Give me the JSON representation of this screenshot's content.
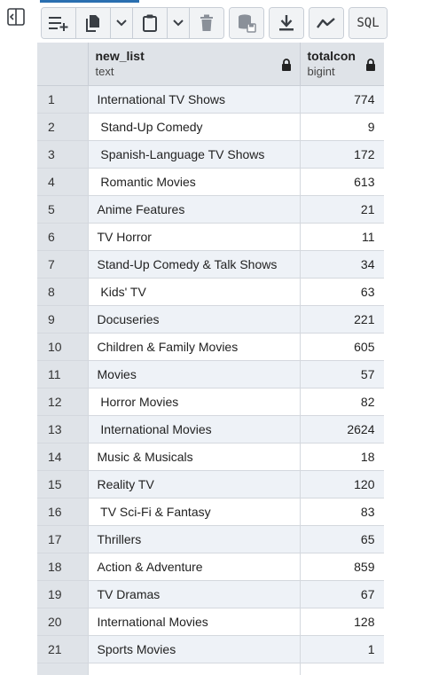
{
  "toolbar": {
    "sql_label": "SQL",
    "buttons": [
      "add-row",
      "copy",
      "copy-options",
      "paste",
      "paste-options",
      "delete",
      "save-data",
      "download",
      "graph",
      "sql"
    ]
  },
  "columns": [
    {
      "name": "new_list",
      "type": "text"
    },
    {
      "name": "totalcon",
      "type": "bigint"
    }
  ],
  "rows": [
    {
      "n": "1",
      "name": "International TV Shows",
      "total": "774"
    },
    {
      "n": "2",
      "name": " Stand-Up Comedy",
      "total": "9"
    },
    {
      "n": "3",
      "name": " Spanish-Language TV Shows",
      "total": "172"
    },
    {
      "n": "4",
      "name": " Romantic Movies",
      "total": "613"
    },
    {
      "n": "5",
      "name": "Anime Features",
      "total": "21"
    },
    {
      "n": "6",
      "name": "TV Horror",
      "total": "11"
    },
    {
      "n": "7",
      "name": "Stand-Up Comedy & Talk Shows",
      "total": "34"
    },
    {
      "n": "8",
      "name": " Kids' TV",
      "total": "63"
    },
    {
      "n": "9",
      "name": "Docuseries",
      "total": "221"
    },
    {
      "n": "10",
      "name": "Children & Family Movies",
      "total": "605"
    },
    {
      "n": "11",
      "name": "Movies",
      "total": "57"
    },
    {
      "n": "12",
      "name": " Horror Movies",
      "total": "82"
    },
    {
      "n": "13",
      "name": " International Movies",
      "total": "2624"
    },
    {
      "n": "14",
      "name": "Music & Musicals",
      "total": "18"
    },
    {
      "n": "15",
      "name": "Reality TV",
      "total": "120"
    },
    {
      "n": "16",
      "name": " TV Sci-Fi & Fantasy",
      "total": "83"
    },
    {
      "n": "17",
      "name": "Thrillers",
      "total": "65"
    },
    {
      "n": "18",
      "name": "Action & Adventure",
      "total": "859"
    },
    {
      "n": "19",
      "name": "TV Dramas",
      "total": "67"
    },
    {
      "n": "20",
      "name": "International Movies",
      "total": "128"
    },
    {
      "n": "21",
      "name": "Sports Movies",
      "total": "1"
    },
    {
      "n": "",
      "name": "",
      "total": ""
    }
  ],
  "colors": {
    "header_bg": "#dfe3e8",
    "row_alt_bg": "#eef2f7",
    "accent": "#2a6fb0",
    "icon": "#3a3f45"
  }
}
